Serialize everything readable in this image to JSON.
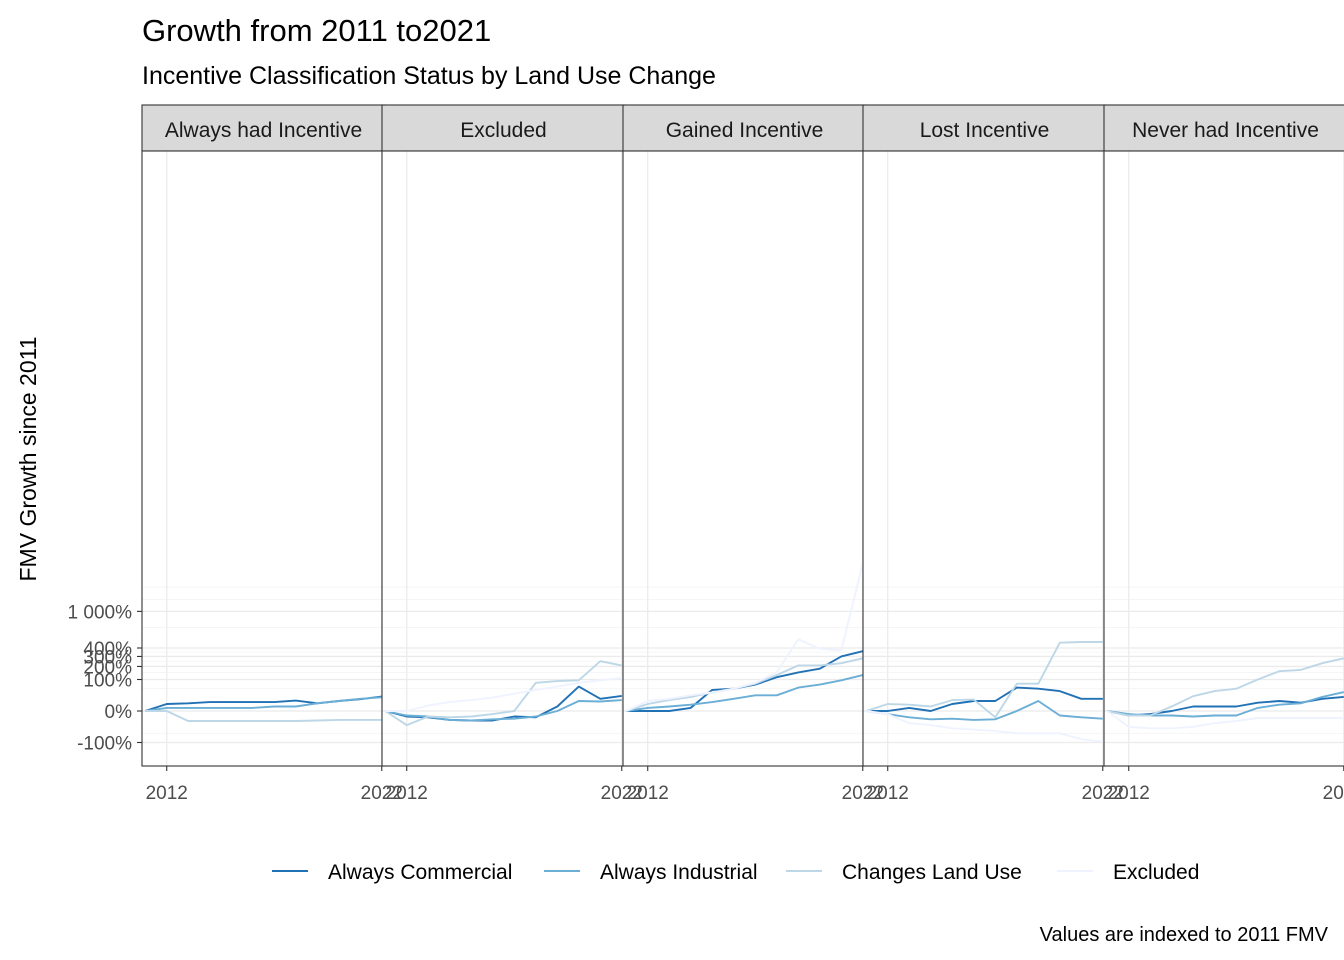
{
  "chart_data": {
    "type": "line",
    "title": "Growth from 2011 to2021",
    "subtitle": "Incentive Classification Status by Land Use Change",
    "xlabel": "",
    "ylabel": "FMV Growth since 2011",
    "caption": "Values are indexed to 2011 FMV",
    "y_scale": "square-root (signed)",
    "x_ticks": [
      "2012",
      "2022"
    ],
    "y_ticks": [
      "-100%",
      "0%",
      "100%",
      "200%",
      "300%",
      "400%",
      "1 000%"
    ],
    "y_tick_values": [
      -1,
      0,
      1,
      2,
      3,
      4,
      10
    ],
    "legend": {
      "position": "bottom"
    },
    "colors": {
      "Always Commercial": "#2171b5",
      "Always Industrial": "#6baed6",
      "Changes Land Use": "#bdd7e7",
      "Excluded": "#eff3ff"
    },
    "series_names": [
      "Always Commercial",
      "Always Industrial",
      "Changes Land Use",
      "Excluded"
    ],
    "x": [
      2011,
      2012,
      2013,
      2014,
      2015,
      2016,
      2017,
      2018,
      2019,
      2020,
      2021,
      2022
    ],
    "panels": [
      {
        "label": "Always had Incentive",
        "series": [
          {
            "name": "Always Commercial",
            "values": [
              0,
              0.05,
              0.06,
              0.08,
              0.08,
              0.08,
              0.08,
              0.11,
              0.06,
              0.1,
              0.14,
              0.21
            ]
          },
          {
            "name": "Always Industrial",
            "values": [
              0,
              0.01,
              0.01,
              0.01,
              0.01,
              0.01,
              0.02,
              0.02,
              0.06,
              0.1,
              0.15,
              0.19
            ]
          },
          {
            "name": "Changes Land Use",
            "values": [
              0,
              0.0,
              -0.1,
              -0.1,
              -0.1,
              -0.1,
              -0.1,
              -0.1,
              -0.09,
              -0.08,
              -0.08,
              -0.08
            ]
          }
        ]
      },
      {
        "label": "Excluded",
        "series": [
          {
            "name": "Always Commercial",
            "values": [
              0,
              -0.03,
              -0.04,
              -0.08,
              -0.09,
              -0.09,
              -0.03,
              -0.04,
              0.02,
              0.6,
              0.15,
              0.23
            ]
          },
          {
            "name": "Always Industrial",
            "values": [
              0,
              -0.02,
              -0.03,
              -0.08,
              -0.09,
              -0.07,
              -0.06,
              -0.03,
              0.0,
              0.1,
              0.09,
              0.12
            ]
          },
          {
            "name": "Changes Land Use",
            "values": [
              0,
              -0.2,
              -0.03,
              -0.04,
              -0.03,
              -0.01,
              0.0,
              0.8,
              0.9,
              0.95,
              2.5,
              2.1
            ]
          },
          {
            "name": "Excluded",
            "values": [
              0,
              0.0,
              0.03,
              0.08,
              0.12,
              0.18,
              0.3,
              0.45,
              0.6,
              0.8,
              0.95,
              1.1
            ]
          }
        ]
      },
      {
        "label": "Gained Incentive",
        "series": [
          {
            "name": "Always Commercial",
            "values": [
              0,
              0.0,
              0.0,
              0.01,
              0.45,
              0.5,
              0.7,
              1.15,
              1.5,
              1.8,
              3.0,
              3.6
            ]
          },
          {
            "name": "Always Industrial",
            "values": [
              0,
              0.01,
              0.02,
              0.04,
              0.08,
              0.15,
              0.25,
              0.25,
              0.55,
              0.7,
              0.95,
              1.3
            ]
          },
          {
            "name": "Changes Land Use",
            "values": [
              0,
              0.05,
              0.12,
              0.2,
              0.35,
              0.5,
              0.75,
              1.3,
              2.1,
              2.1,
              2.3,
              2.8
            ]
          },
          {
            "name": "Excluded",
            "values": [
              0,
              0.1,
              0.15,
              0.25,
              0.35,
              0.5,
              0.8,
              1.5,
              5.2,
              3.9,
              3.7,
              22
            ]
          }
        ]
      },
      {
        "label": "Lost Incentive",
        "series": [
          {
            "name": "Always Commercial",
            "values": [
              0,
              0.0,
              0.01,
              0.0,
              0.05,
              0.1,
              0.1,
              0.55,
              0.5,
              0.4,
              0.15,
              0.15
            ]
          },
          {
            "name": "Always Industrial",
            "values": [
              0,
              -0.01,
              -0.04,
              -0.07,
              -0.06,
              -0.08,
              -0.07,
              0.0,
              0.1,
              -0.02,
              -0.04,
              -0.06
            ]
          },
          {
            "name": "Changes Land Use",
            "values": [
              0,
              0.05,
              0.04,
              0.02,
              0.12,
              0.13,
              -0.04,
              0.75,
              0.75,
              4.7,
              4.8,
              4.8
            ]
          },
          {
            "name": "Excluded",
            "values": [
              0,
              -0.01,
              -0.15,
              -0.2,
              -0.3,
              -0.35,
              -0.4,
              -0.5,
              -0.5,
              -0.5,
              -0.8,
              -0.95
            ]
          }
        ]
      },
      {
        "label": "Never had Incentive",
        "series": [
          {
            "name": "Always Commercial",
            "values": [
              0,
              -0.02,
              -0.01,
              0.0,
              0.02,
              0.02,
              0.02,
              0.07,
              0.1,
              0.07,
              0.15,
              0.2
            ]
          },
          {
            "name": "Always Industrial",
            "values": [
              0,
              -0.01,
              -0.02,
              -0.02,
              -0.03,
              -0.02,
              -0.02,
              0.01,
              0.04,
              0.06,
              0.2,
              0.36
            ]
          },
          {
            "name": "Changes Land Use",
            "values": [
              0,
              -0.02,
              -0.02,
              0.02,
              0.22,
              0.4,
              0.5,
              1.0,
              1.6,
              1.7,
              2.3,
              2.8
            ]
          },
          {
            "name": "Excluded",
            "values": [
              0,
              -0.25,
              -0.3,
              -0.3,
              -0.25,
              -0.15,
              -0.1,
              -0.05,
              -0.05,
              -0.05,
              -0.05,
              -0.05
            ]
          }
        ]
      }
    ]
  }
}
